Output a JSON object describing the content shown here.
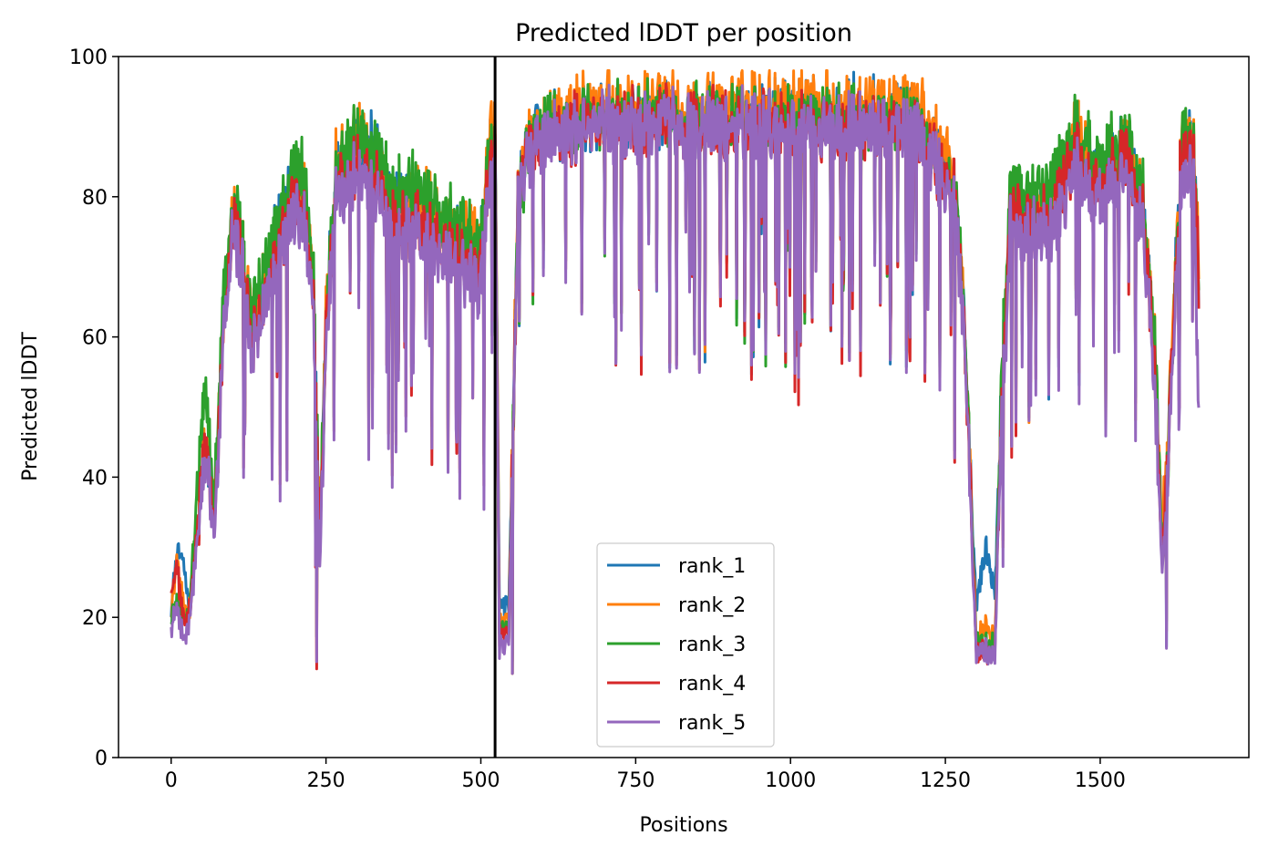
{
  "chart_data": {
    "type": "line",
    "title": "Predicted lDDT per position",
    "xlabel": "Positions",
    "ylabel": "Predicted lDDT",
    "xlim": [
      -85,
      1740
    ],
    "ylim": [
      0,
      100
    ],
    "x_ticks": [
      0,
      250,
      500,
      750,
      1000,
      1250,
      1500
    ],
    "y_ticks": [
      0,
      20,
      40,
      60,
      80,
      100
    ],
    "grid": false,
    "legend_position": "lower center",
    "vline_x": 523,
    "length": 1660,
    "anchors_x": [
      0,
      10,
      20,
      30,
      40,
      55,
      70,
      85,
      100,
      115,
      130,
      150,
      175,
      200,
      215,
      230,
      240,
      250,
      265,
      280,
      300,
      330,
      360,
      400,
      440,
      480,
      500,
      515,
      523,
      530,
      545,
      560,
      580,
      620,
      700,
      800,
      900,
      1000,
      1100,
      1200,
      1250,
      1265,
      1280,
      1290,
      1300,
      1315,
      1330,
      1340,
      1355,
      1380,
      1420,
      1460,
      1500,
      1540,
      1570,
      1590,
      1600,
      1610,
      1630,
      1650,
      1660
    ],
    "series": [
      {
        "name": "rank_1",
        "color": "#1f77b4",
        "base": [
          21,
          30,
          27,
          22,
          30,
          45,
          34,
          62,
          78,
          72,
          60,
          68,
          77,
          82,
          80,
          66,
          32,
          63,
          82,
          83,
          87,
          86,
          79,
          80,
          75,
          74,
          72,
          88,
          88,
          22,
          21,
          80,
          88,
          90,
          91,
          91,
          91,
          92,
          92,
          91,
          84,
          81,
          64,
          40,
          22,
          30,
          24,
          50,
          78,
          77,
          78,
          88,
          82,
          88,
          79,
          55,
          30,
          44,
          86,
          88,
          67
        ],
        "jitter": 7,
        "dip_rate": 0.085
      },
      {
        "name": "rank_2",
        "color": "#ff7f0e",
        "base": [
          21,
          28,
          21,
          21,
          30,
          45,
          34,
          62,
          78,
          72,
          60,
          68,
          76,
          82,
          80,
          66,
          30,
          64,
          84,
          86,
          89,
          85,
          78,
          80,
          75,
          74,
          73,
          89,
          89,
          19,
          19,
          80,
          88,
          92,
          93,
          93,
          93,
          93,
          93,
          93,
          86,
          82,
          64,
          40,
          17,
          19,
          17,
          50,
          78,
          77,
          78,
          89,
          82,
          88,
          79,
          55,
          31,
          45,
          88,
          89,
          67
        ],
        "jitter": 7,
        "dip_rate": 0.085
      },
      {
        "name": "rank_3",
        "color": "#2ca02c",
        "base": [
          20,
          22,
          19,
          22,
          35,
          53,
          36,
          65,
          80,
          74,
          62,
          70,
          78,
          85,
          83,
          67,
          30,
          62,
          83,
          86,
          89,
          86,
          80,
          82,
          77,
          75,
          73,
          87,
          87,
          18,
          18,
          79,
          87,
          90,
          91,
          91,
          91,
          91,
          91,
          90,
          84,
          82,
          64,
          40,
          16,
          16,
          16,
          53,
          82,
          80,
          81,
          89,
          84,
          89,
          80,
          56,
          29,
          43,
          87,
          88,
          67
        ],
        "jitter": 7,
        "dip_rate": 0.085
      },
      {
        "name": "rank_4",
        "color": "#d62728",
        "base": [
          24,
          27,
          19,
          21,
          30,
          45,
          33,
          61,
          77,
          70,
          58,
          66,
          74,
          80,
          78,
          64,
          29,
          61,
          81,
          82,
          84,
          81,
          76,
          77,
          72,
          71,
          70,
          86,
          86,
          18,
          17,
          79,
          87,
          89,
          90,
          90,
          90,
          90,
          90,
          89,
          83,
          80,
          62,
          38,
          15,
          15,
          15,
          49,
          77,
          76,
          76,
          86,
          80,
          86,
          77,
          53,
          28,
          42,
          85,
          86,
          66
        ],
        "jitter": 7,
        "dip_rate": 0.085
      },
      {
        "name": "rank_5",
        "color": "#9467bd",
        "base": [
          19,
          21,
          16,
          20,
          29,
          43,
          32,
          60,
          76,
          69,
          57,
          64,
          72,
          78,
          76,
          62,
          27,
          59,
          80,
          81,
          83,
          80,
          74,
          75,
          70,
          69,
          67,
          84,
          84,
          16,
          16,
          78,
          86,
          89,
          90,
          90,
          90,
          90,
          90,
          89,
          82,
          79,
          61,
          37,
          15,
          15,
          15,
          47,
          75,
          74,
          74,
          84,
          78,
          84,
          75,
          50,
          26,
          40,
          82,
          84,
          46
        ],
        "jitter": 7,
        "dip_rate": 0.085
      }
    ]
  }
}
